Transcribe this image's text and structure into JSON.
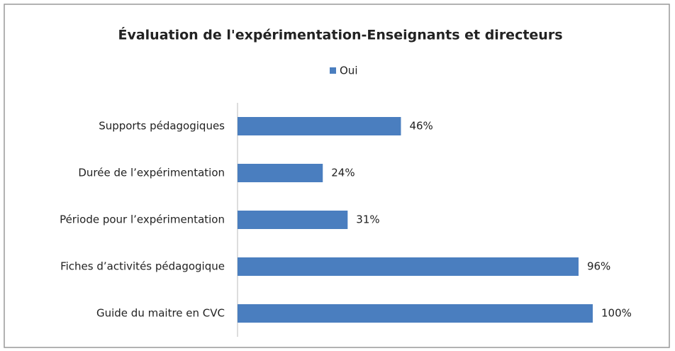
{
  "chart_data": {
    "type": "bar",
    "orientation": "horizontal",
    "title": "Évaluation de l'expérimentation-Enseignants et directeurs",
    "categories": [
      "Supports pédagogiques",
      "Durée de l’expérimentation",
      "Période pour l’expérimentation",
      "Fiches d’activités pédagogique",
      "Guide du maitre en CVC"
    ],
    "series": [
      {
        "name": "Oui",
        "color": "#4a7ebf",
        "values": [
          46,
          24,
          31,
          96,
          100
        ],
        "value_labels": [
          "46%",
          "24%",
          "31%",
          "96%",
          "100%"
        ]
      }
    ],
    "xlim": [
      0,
      100
    ]
  }
}
